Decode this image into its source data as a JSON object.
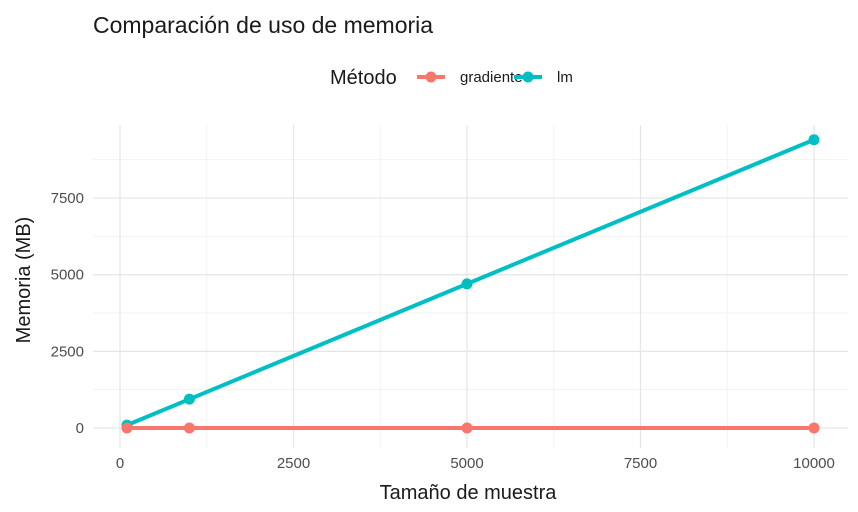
{
  "chart_data": {
    "type": "line",
    "title": "Comparación de uso de memoria",
    "xlabel": "Tamaño de muestra",
    "ylabel": "Memoria (MB)",
    "xlim": [
      0,
      10000
    ],
    "ylim": [
      0,
      9400
    ],
    "x_ticks": [
      0,
      2500,
      5000,
      7500,
      10000
    ],
    "x_tick_labels": [
      "0",
      "2500",
      "5000",
      "7500",
      "10000"
    ],
    "y_ticks": [
      0,
      2500,
      5000,
      7500
    ],
    "y_tick_labels": [
      "0",
      "2500",
      "5000",
      "7500"
    ],
    "grid": true,
    "legend": {
      "title": "Método",
      "position": "top"
    },
    "series": [
      {
        "name": "gradiente",
        "color": "#F8766D",
        "x": [
          100,
          1000,
          5000,
          10000
        ],
        "y": [
          0,
          0,
          0,
          0
        ]
      },
      {
        "name": "lm",
        "color": "#00BFC4",
        "x": [
          100,
          1000,
          5000,
          10000
        ],
        "y": [
          94,
          940,
          4700,
          9400
        ]
      }
    ]
  }
}
